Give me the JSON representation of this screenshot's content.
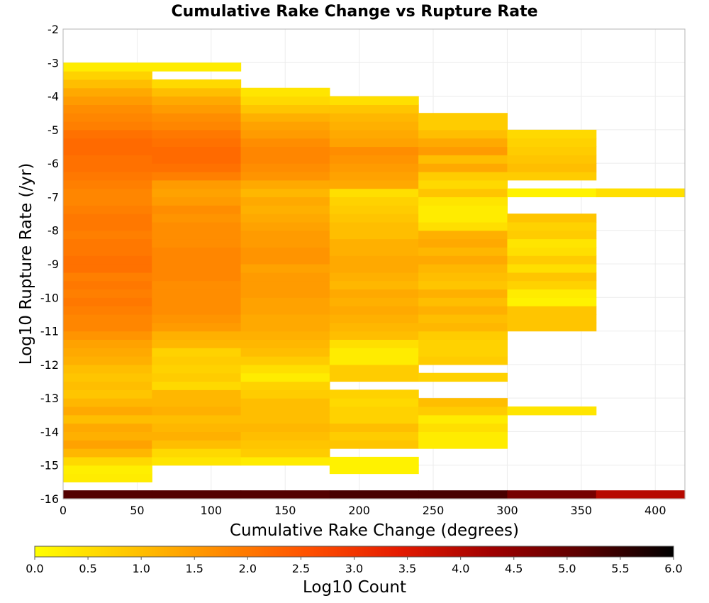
{
  "chart_data": {
    "type": "heatmap",
    "title": "Cumulative Rake Change vs Rupture Rate",
    "xlabel": "Cumulative Rake Change (degrees)",
    "ylabel": "Log10 Rupture Rate (/yr)",
    "xlim": [
      0,
      420
    ],
    "ylim": [
      -16,
      -2
    ],
    "x_ticks": [
      "0",
      "50",
      "100",
      "150",
      "200",
      "250",
      "300",
      "350",
      "400"
    ],
    "y_ticks": [
      "-2",
      "-3",
      "-4",
      "-5",
      "-6",
      "-7",
      "-8",
      "-9",
      "-10",
      "-11",
      "-12",
      "-13",
      "-14",
      "-15",
      "-16"
    ],
    "grid": true,
    "x_bin_width": 60,
    "y_bin_height": 0.25,
    "colorbar": {
      "label": "Log10 Count",
      "range": [
        0,
        6
      ],
      "ticks": [
        "0.0",
        "0.5",
        "1.0",
        "1.5",
        "2.0",
        "2.5",
        "3.0",
        "3.5",
        "4.0",
        "4.5",
        "5.0",
        "5.5",
        "6.0"
      ],
      "stops": [
        "#ffff00",
        "#ffc800",
        "#ff8c00",
        "#ff5000",
        "#e41a00",
        "#a00000",
        "#5a0000",
        "#000000"
      ]
    },
    "column_x_centers": [
      30,
      90,
      150,
      210,
      270,
      330,
      390
    ],
    "cells": [
      [
        [
          -15.375,
          0.3
        ],
        [
          -15.125,
          0.25
        ],
        [
          -14.875,
          0.6
        ],
        [
          -14.625,
          1.1
        ],
        [
          -14.375,
          1.4
        ],
        [
          -14.125,
          1.2
        ],
        [
          -13.875,
          1.3
        ],
        [
          -13.625,
          1.0
        ],
        [
          -13.375,
          1.3
        ],
        [
          -13.125,
          1.1
        ],
        [
          -12.875,
          0.9
        ],
        [
          -12.625,
          1.0
        ],
        [
          -12.375,
          0.9
        ],
        [
          -12.125,
          1.0
        ],
        [
          -11.875,
          1.2
        ],
        [
          -11.625,
          1.3
        ],
        [
          -11.375,
          1.4
        ],
        [
          -11.125,
          1.6
        ],
        [
          -10.875,
          1.8
        ],
        [
          -10.625,
          1.8
        ],
        [
          -10.375,
          1.9
        ],
        [
          -10.125,
          2.0
        ],
        [
          -9.875,
          1.9
        ],
        [
          -9.625,
          2.0
        ],
        [
          -9.375,
          1.9
        ],
        [
          -9.125,
          2.1
        ],
        [
          -8.875,
          2.1
        ],
        [
          -8.625,
          2.0
        ],
        [
          -8.375,
          2.0
        ],
        [
          -8.125,
          1.9
        ],
        [
          -7.875,
          2.0
        ],
        [
          -7.625,
          2.0
        ],
        [
          -7.375,
          1.9
        ],
        [
          -7.125,
          1.8
        ],
        [
          -6.875,
          1.8
        ],
        [
          -6.625,
          1.9
        ],
        [
          -6.375,
          2.0
        ],
        [
          -6.125,
          2.1
        ],
        [
          -5.875,
          2.1
        ],
        [
          -5.625,
          2.2
        ],
        [
          -5.375,
          2.2
        ],
        [
          -5.125,
          2.1
        ],
        [
          -4.875,
          1.9
        ],
        [
          -4.625,
          1.8
        ],
        [
          -4.375,
          1.7
        ],
        [
          -4.125,
          1.5
        ],
        [
          -3.875,
          1.3
        ],
        [
          -3.625,
          1.0
        ],
        [
          -3.375,
          0.7
        ],
        [
          -3.125,
          0.3
        ],
        [
          -15.875,
          5.2
        ]
      ],
      [
        [
          -14.875,
          0.4
        ],
        [
          -14.625,
          0.6
        ],
        [
          -14.375,
          1.0
        ],
        [
          -14.125,
          1.2
        ],
        [
          -13.875,
          1.1
        ],
        [
          -13.625,
          1.0
        ],
        [
          -13.375,
          1.2
        ],
        [
          -13.125,
          1.1
        ],
        [
          -12.875,
          1.1
        ],
        [
          -12.625,
          0.6
        ],
        [
          -12.375,
          0.8
        ],
        [
          -12.125,
          0.7
        ],
        [
          -11.875,
          0.8
        ],
        [
          -11.625,
          0.7
        ],
        [
          -11.375,
          1.1
        ],
        [
          -11.125,
          1.2
        ],
        [
          -10.875,
          1.5
        ],
        [
          -10.625,
          1.6
        ],
        [
          -10.375,
          1.7
        ],
        [
          -10.125,
          1.7
        ],
        [
          -9.875,
          1.7
        ],
        [
          -9.625,
          1.7
        ],
        [
          -9.375,
          1.8
        ],
        [
          -9.125,
          1.8
        ],
        [
          -8.875,
          1.8
        ],
        [
          -8.625,
          1.8
        ],
        [
          -8.375,
          1.7
        ],
        [
          -8.125,
          1.7
        ],
        [
          -7.875,
          1.7
        ],
        [
          -7.625,
          1.6
        ],
        [
          -7.375,
          1.7
        ],
        [
          -7.125,
          1.5
        ],
        [
          -6.875,
          1.4
        ],
        [
          -6.625,
          1.5
        ],
        [
          -6.375,
          1.9
        ],
        [
          -6.125,
          2.1
        ],
        [
          -5.875,
          2.2
        ],
        [
          -5.625,
          2.2
        ],
        [
          -5.375,
          2.1
        ],
        [
          -5.125,
          2.0
        ],
        [
          -4.875,
          1.8
        ],
        [
          -4.625,
          1.7
        ],
        [
          -4.375,
          1.5
        ],
        [
          -4.125,
          1.3
        ],
        [
          -3.875,
          1.0
        ],
        [
          -3.625,
          0.6
        ],
        [
          -3.125,
          0.3
        ],
        [
          -15.875,
          5.2
        ]
      ],
      [
        [
          -14.875,
          0.3
        ],
        [
          -14.625,
          0.8
        ],
        [
          -14.375,
          0.9
        ],
        [
          -14.125,
          1.0
        ],
        [
          -13.875,
          1.1
        ],
        [
          -13.625,
          1.0
        ],
        [
          -13.375,
          1.0
        ],
        [
          -13.125,
          1.0
        ],
        [
          -12.875,
          0.8
        ],
        [
          -12.625,
          0.7
        ],
        [
          -12.375,
          0.3
        ],
        [
          -12.125,
          0.5
        ],
        [
          -11.875,
          0.8
        ],
        [
          -11.625,
          1.0
        ],
        [
          -11.375,
          1.1
        ],
        [
          -11.125,
          1.2
        ],
        [
          -10.875,
          1.3
        ],
        [
          -10.625,
          1.3
        ],
        [
          -10.375,
          1.4
        ],
        [
          -10.125,
          1.4
        ],
        [
          -9.875,
          1.5
        ],
        [
          -9.625,
          1.5
        ],
        [
          -9.375,
          1.5
        ],
        [
          -9.125,
          1.4
        ],
        [
          -8.875,
          1.6
        ],
        [
          -8.625,
          1.6
        ],
        [
          -8.375,
          1.5
        ],
        [
          -8.125,
          1.5
        ],
        [
          -7.875,
          1.4
        ],
        [
          -7.625,
          1.3
        ],
        [
          -7.375,
          1.2
        ],
        [
          -7.125,
          1.3
        ],
        [
          -6.875,
          1.1
        ],
        [
          -6.625,
          1.3
        ],
        [
          -6.375,
          1.6
        ],
        [
          -6.125,
          1.7
        ],
        [
          -5.875,
          1.8
        ],
        [
          -5.625,
          1.8
        ],
        [
          -5.375,
          1.7
        ],
        [
          -5.125,
          1.5
        ],
        [
          -4.875,
          1.4
        ],
        [
          -4.625,
          1.2
        ],
        [
          -4.375,
          0.9
        ],
        [
          -4.125,
          0.6
        ],
        [
          -3.875,
          0.4
        ],
        [
          -15.875,
          5.2
        ]
      ],
      [
        [
          -15.125,
          0.2
        ],
        [
          -14.875,
          0.2
        ],
        [
          -14.375,
          0.9
        ],
        [
          -14.125,
          0.8
        ],
        [
          -13.875,
          1.0
        ],
        [
          -13.625,
          0.7
        ],
        [
          -13.375,
          0.7
        ],
        [
          -13.125,
          0.6
        ],
        [
          -12.875,
          0.7
        ],
        [
          -12.375,
          0.8
        ],
        [
          -12.125,
          0.8
        ],
        [
          -11.875,
          0.3
        ],
        [
          -11.625,
          0.3
        ],
        [
          -11.375,
          0.5
        ],
        [
          -11.125,
          1.0
        ],
        [
          -10.875,
          1.1
        ],
        [
          -10.625,
          1.2
        ],
        [
          -10.375,
          1.3
        ],
        [
          -10.125,
          1.2
        ],
        [
          -9.875,
          1.3
        ],
        [
          -9.625,
          1.1
        ],
        [
          -9.375,
          1.2
        ],
        [
          -9.125,
          1.3
        ],
        [
          -8.875,
          1.3
        ],
        [
          -8.625,
          1.2
        ],
        [
          -8.375,
          1.2
        ],
        [
          -8.125,
          1.0
        ],
        [
          -7.875,
          1.0
        ],
        [
          -7.625,
          0.9
        ],
        [
          -7.375,
          0.8
        ],
        [
          -7.125,
          0.7
        ],
        [
          -6.875,
          0.5
        ],
        [
          -6.625,
          1.3
        ],
        [
          -6.375,
          1.4
        ],
        [
          -6.125,
          1.5
        ],
        [
          -5.875,
          1.6
        ],
        [
          -5.625,
          1.7
        ],
        [
          -5.375,
          1.4
        ],
        [
          -5.125,
          1.3
        ],
        [
          -4.875,
          1.2
        ],
        [
          -4.625,
          1.1
        ],
        [
          -4.375,
          0.9
        ],
        [
          -4.125,
          0.5
        ],
        [
          -15.875,
          5.3
        ]
      ],
      [
        [
          -14.375,
          0.3
        ],
        [
          -14.125,
          0.3
        ],
        [
          -13.875,
          0.5
        ],
        [
          -13.625,
          0.3
        ],
        [
          -13.375,
          0.8
        ],
        [
          -13.125,
          1.0
        ],
        [
          -12.375,
          0.7
        ],
        [
          -11.875,
          0.8
        ],
        [
          -11.625,
          0.7
        ],
        [
          -11.375,
          0.7
        ],
        [
          -11.125,
          0.8
        ],
        [
          -10.875,
          1.1
        ],
        [
          -10.625,
          1.0
        ],
        [
          -10.375,
          1.2
        ],
        [
          -10.125,
          1.0
        ],
        [
          -9.875,
          1.2
        ],
        [
          -9.625,
          0.9
        ],
        [
          -9.375,
          1.0
        ],
        [
          -9.125,
          1.1
        ],
        [
          -8.875,
          1.3
        ],
        [
          -8.625,
          1.1
        ],
        [
          -8.375,
          1.3
        ],
        [
          -8.125,
          1.2
        ],
        [
          -7.875,
          0.5
        ],
        [
          -7.625,
          0.3
        ],
        [
          -7.375,
          0.3
        ],
        [
          -7.125,
          0.4
        ],
        [
          -6.875,
          0.9
        ],
        [
          -6.625,
          0.6
        ],
        [
          -6.375,
          0.8
        ],
        [
          -6.125,
          1.3
        ],
        [
          -5.875,
          1.0
        ],
        [
          -5.625,
          1.5
        ],
        [
          -5.375,
          1.3
        ],
        [
          -5.125,
          1.0
        ],
        [
          -4.875,
          0.8
        ],
        [
          -4.625,
          0.8
        ],
        [
          -15.875,
          5.3
        ]
      ],
      [
        [
          -13.375,
          0.4
        ],
        [
          -10.875,
          0.9
        ],
        [
          -10.625,
          0.9
        ],
        [
          -10.375,
          0.9
        ],
        [
          -10.125,
          0.2
        ],
        [
          -9.875,
          0.3
        ],
        [
          -9.625,
          0.7
        ],
        [
          -9.375,
          0.9
        ],
        [
          -9.125,
          0.5
        ],
        [
          -8.875,
          0.8
        ],
        [
          -8.625,
          0.5
        ],
        [
          -8.375,
          0.4
        ],
        [
          -8.125,
          0.8
        ],
        [
          -7.875,
          0.7
        ],
        [
          -7.625,
          0.9
        ],
        [
          -6.875,
          0.2
        ],
        [
          -6.375,
          0.8
        ],
        [
          -6.125,
          1.0
        ],
        [
          -5.875,
          0.9
        ],
        [
          -5.625,
          0.8
        ],
        [
          -5.375,
          0.7
        ],
        [
          -5.125,
          0.6
        ],
        [
          -15.875,
          4.8
        ]
      ],
      [
        [
          -6.875,
          0.5
        ],
        [
          -15.875,
          4.0
        ]
      ]
    ]
  }
}
